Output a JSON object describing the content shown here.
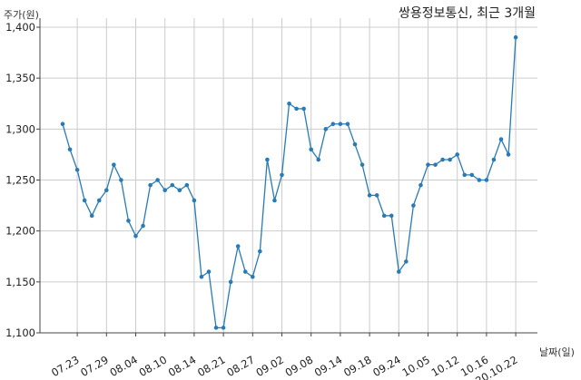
{
  "chart_data": {
    "type": "line",
    "title": "쌍용정보통신, 최근 3개월",
    "ylabel": "주가(원)",
    "xlabel": "날짜(일)",
    "ylim": [
      1100,
      1400
    ],
    "yticks": [
      "1,100",
      "1,150",
      "1,200",
      "1,250",
      "1,300",
      "1,350",
      "1,400"
    ],
    "ytick_values": [
      1100,
      1150,
      1200,
      1250,
      1300,
      1350,
      1400
    ],
    "xticks": [
      "07.23",
      "07.29",
      "08.04",
      "08.10",
      "08.14",
      "08.21",
      "08.27",
      "09.02",
      "09.08",
      "09.14",
      "09.18",
      "09.24",
      "10.05",
      "10.12",
      "10.16",
      "20.10.22"
    ],
    "xtick_index": [
      2,
      6,
      10,
      14,
      18,
      22,
      26,
      30,
      34,
      38,
      42,
      46,
      50,
      54,
      58,
      62
    ],
    "grid": true,
    "color": "#2a7bb5",
    "series": [
      {
        "values": [
          1305,
          1280,
          1260,
          1230,
          1215,
          1230,
          1240,
          1265,
          1250,
          1210,
          1195,
          1205,
          1245,
          1250,
          1240,
          1245,
          1240,
          1245,
          1230,
          1155,
          1160,
          1105,
          1105,
          1150,
          1185,
          1160,
          1155,
          1180,
          1270,
          1230,
          1255,
          1325,
          1320,
          1320,
          1280,
          1270,
          1300,
          1305,
          1305,
          1305,
          1285,
          1265,
          1235,
          1235,
          1215,
          1215,
          1160,
          1170,
          1225,
          1245,
          1265,
          1265,
          1270,
          1270,
          1275,
          1255,
          1255,
          1250,
          1250,
          1270,
          1290,
          1275,
          1390
        ]
      }
    ]
  }
}
